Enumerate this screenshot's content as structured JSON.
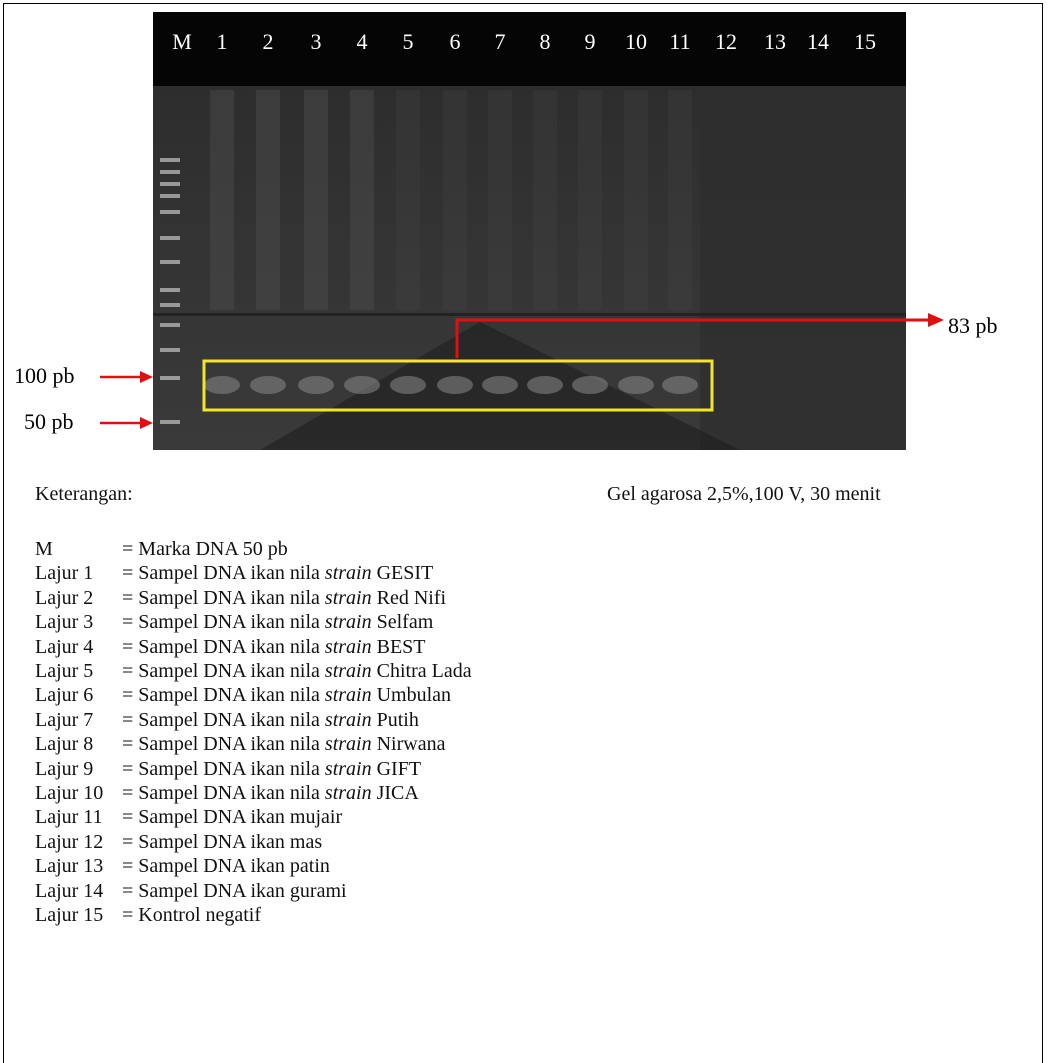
{
  "gel": {
    "lanes": [
      "M",
      "1",
      "2",
      "3",
      "4",
      "5",
      "6",
      "7",
      "8",
      "9",
      "10",
      "11",
      "12",
      "13",
      "14",
      "15"
    ],
    "callout_right": "83 pb",
    "marker_100": "100 pb",
    "marker_50": "50 pb"
  },
  "caption": {
    "heading": "Keterangan:",
    "conditions": "Gel agarosa 2,5%,100 V, 30 menit",
    "entries": [
      {
        "key": "M",
        "text": "= Marka DNA 50 pb"
      },
      {
        "key": "Lajur 1",
        "prefix": "= Sampel DNA ikan nila",
        "italic": "strain",
        "suffix": "GESIT"
      },
      {
        "key": "Lajur 2",
        "prefix": "= Sampel DNA ikan nila",
        "italic": "strain",
        "suffix": "Red Nifi"
      },
      {
        "key": "Lajur 3",
        "prefix": "= Sampel DNA ikan nila",
        "italic": "strain",
        "suffix": "Selfam"
      },
      {
        "key": "Lajur 4",
        "prefix": "= Sampel DNA ikan nila",
        "italic": "strain",
        "suffix": "BEST"
      },
      {
        "key": "Lajur 5",
        "prefix": "= Sampel DNA ikan nila",
        "italic": "strain",
        "suffix": "Chitra Lada"
      },
      {
        "key": "Lajur 6",
        "prefix": "= Sampel DNA ikan nila",
        "italic": "strain",
        "suffix": "Umbulan"
      },
      {
        "key": "Lajur 7",
        "prefix": "= Sampel DNA ikan nila",
        "italic": "strain",
        "suffix": "Putih"
      },
      {
        "key": "Lajur 8",
        "prefix": "= Sampel DNA ikan nila",
        "italic": "strain",
        "suffix": "Nirwana"
      },
      {
        "key": "Lajur 9",
        "prefix": "= Sampel DNA ikan nila",
        "italic": "strain",
        "suffix": "GIFT"
      },
      {
        "key": "Lajur 10",
        "prefix": "= Sampel DNA ikan nila",
        "italic": "strain",
        "suffix": "JICA"
      },
      {
        "key": "Lajur 11",
        "text": "= Sampel DNA ikan mujair"
      },
      {
        "key": "Lajur 12",
        "text": "= Sampel DNA ikan mas"
      },
      {
        "key": "Lajur 13",
        "text": "= Sampel DNA ikan patin"
      },
      {
        "key": "Lajur 14",
        "text": "= Sampel DNA ikan gurami"
      },
      {
        "key": "Lajur 15",
        "text": "= Kontrol negatif"
      }
    ]
  }
}
